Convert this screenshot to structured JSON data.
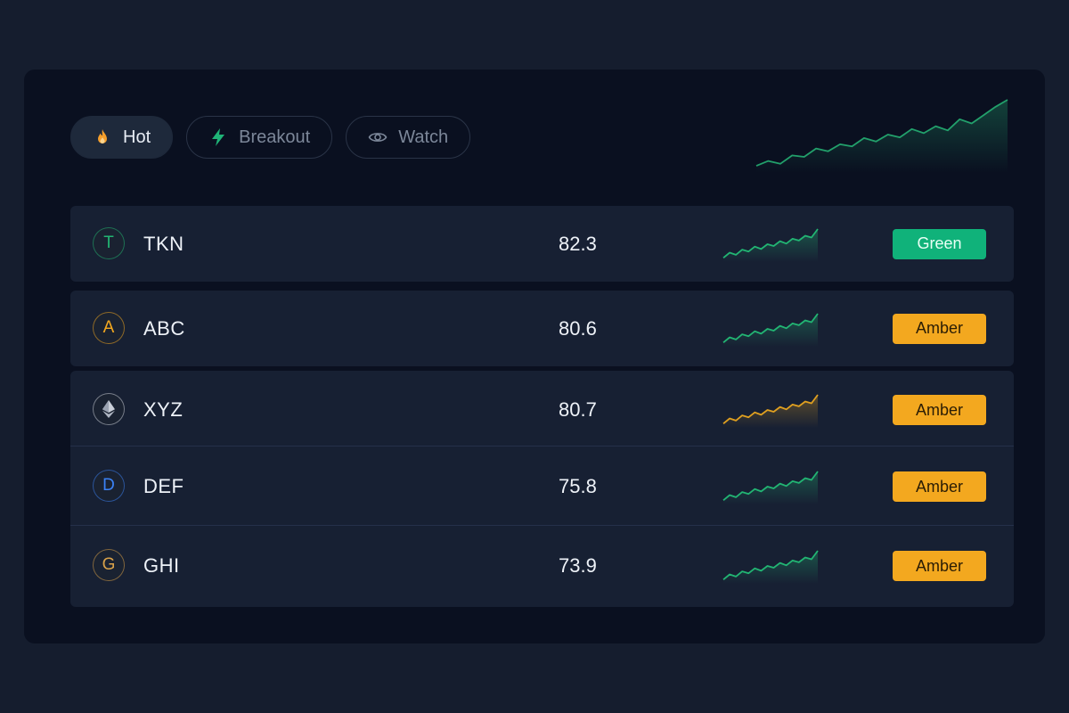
{
  "tabs": [
    {
      "label": "Hot",
      "icon": "flame-icon",
      "active": true
    },
    {
      "label": "Breakout",
      "icon": "lightning-icon",
      "active": false
    },
    {
      "label": "Watch",
      "icon": "eye-icon",
      "active": false
    }
  ],
  "header_sparkline": {
    "color": "#22a06b",
    "trend": [
      0.05,
      0.12,
      0.08,
      0.2,
      0.18,
      0.3,
      0.26,
      0.36,
      0.33,
      0.45,
      0.4,
      0.5,
      0.46,
      0.58,
      0.52,
      0.62,
      0.56,
      0.72,
      0.66,
      0.78,
      0.9,
      1.0
    ]
  },
  "rows": [
    {
      "avatar_letter": "T",
      "avatar_color": "#22b573",
      "symbol": "TKN",
      "score": "82.3",
      "spark_color": "#22b573",
      "badge": "Green",
      "badge_type": "green"
    },
    {
      "avatar_letter": "A",
      "avatar_color": "#f3a81f",
      "symbol": "ABC",
      "score": "80.6",
      "spark_color": "#22b573",
      "badge": "Amber",
      "badge_type": "amber"
    },
    {
      "avatar_letter": "",
      "avatar_icon": "ethereum-icon",
      "avatar_color": "#c9ced8",
      "symbol": "XYZ",
      "score": "80.7",
      "spark_color": "#e0a020",
      "badge": "Amber",
      "badge_type": "amber"
    },
    {
      "avatar_letter": "D",
      "avatar_color": "#3b82f6",
      "symbol": "DEF",
      "score": "75.8",
      "spark_color": "#22b573",
      "badge": "Amber",
      "badge_type": "amber"
    },
    {
      "avatar_letter": "G",
      "avatar_color": "#d9a24a",
      "symbol": "GHI",
      "score": "73.9",
      "spark_color": "#22b573",
      "badge": "Amber",
      "badge_type": "amber"
    }
  ]
}
